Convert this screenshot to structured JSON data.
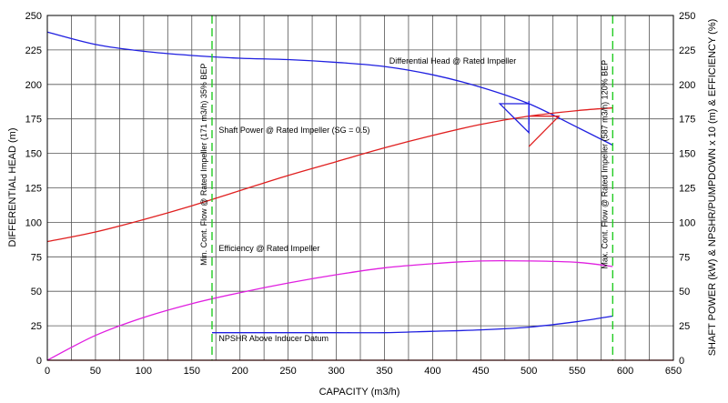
{
  "chart_data": {
    "type": "line",
    "xlabel": "CAPACITY (m3/h)",
    "ylabel_left": "DIFFERENTIAL HEAD (m)",
    "ylabel_right": "SHAFT POWER (kW) & NPSHR/PUMPDOWN x 10 (m) & EFFICIENCY (%)",
    "xlim": [
      0,
      650
    ],
    "ylim": [
      0,
      250
    ],
    "x_ticks": [
      0,
      50,
      100,
      150,
      200,
      250,
      300,
      350,
      400,
      450,
      500,
      550,
      600,
      650
    ],
    "y_ticks": [
      0,
      25,
      50,
      75,
      100,
      125,
      150,
      175,
      200,
      225,
      250
    ],
    "grid": true,
    "colors": {
      "head": "#1f1fe0",
      "power": "#e01f1f",
      "efficiency": "#e01fe0",
      "npshr": "#1f1fe0",
      "limits": "#22cc22"
    },
    "series": [
      {
        "name": "Differential Head @ Rated Impeller",
        "color": "#1f1fe0",
        "x": [
          0,
          50,
          100,
          150,
          200,
          250,
          300,
          350,
          400,
          450,
          500,
          550,
          587
        ],
        "y": [
          238,
          229,
          224,
          221,
          219,
          218,
          216,
          213,
          207,
          198,
          186,
          169,
          156
        ]
      },
      {
        "name": "Shaft Power @ Rated Impeller (SG = 0.5)",
        "color": "#e01f1f",
        "x": [
          0,
          50,
          100,
          150,
          200,
          250,
          300,
          350,
          400,
          450,
          500,
          550,
          587
        ],
        "y": [
          86,
          93,
          102,
          112,
          123,
          134,
          144,
          154,
          163,
          171,
          177,
          181,
          183
        ]
      },
      {
        "name": "Efficiency @ Rated Impeller",
        "color": "#e01fe0",
        "x": [
          0,
          50,
          100,
          150,
          200,
          250,
          300,
          350,
          400,
          450,
          500,
          550,
          587
        ],
        "y": [
          0,
          18,
          31,
          41,
          49,
          56,
          62,
          67,
          70,
          72,
          72,
          71,
          68
        ]
      },
      {
        "name": "NPSHR Above Inducer Datum",
        "color": "#1f1fe0",
        "x": [
          171,
          250,
          300,
          350,
          400,
          450,
          500,
          550,
          587
        ],
        "y": [
          20,
          20,
          20,
          20,
          21,
          22,
          24,
          28,
          32
        ]
      }
    ],
    "vertical_lines": [
      {
        "x": 171,
        "label": "Min. Cont. Flow @ Rated Impeller (171 m3/h) 35% BEP"
      },
      {
        "x": 587,
        "label": "Max. Cont. Flow @ Rated Impeller (587 m3/h) 120% BEP"
      }
    ],
    "annotations": [
      {
        "text": "Differential Head @ Rated Impeller",
        "x": 355,
        "y": 215
      },
      {
        "text": "Shaft Power @ Rated Impeller (SG = 0.5)",
        "x": 178,
        "y": 165
      },
      {
        "text": "Efficiency @ Rated Impeller",
        "x": 178,
        "y": 79
      },
      {
        "text": "NPSHR Above Inducer Datum",
        "x": 178,
        "y": 14
      }
    ],
    "duty_point": {
      "x": 500,
      "head": 186,
      "power": 177
    }
  }
}
